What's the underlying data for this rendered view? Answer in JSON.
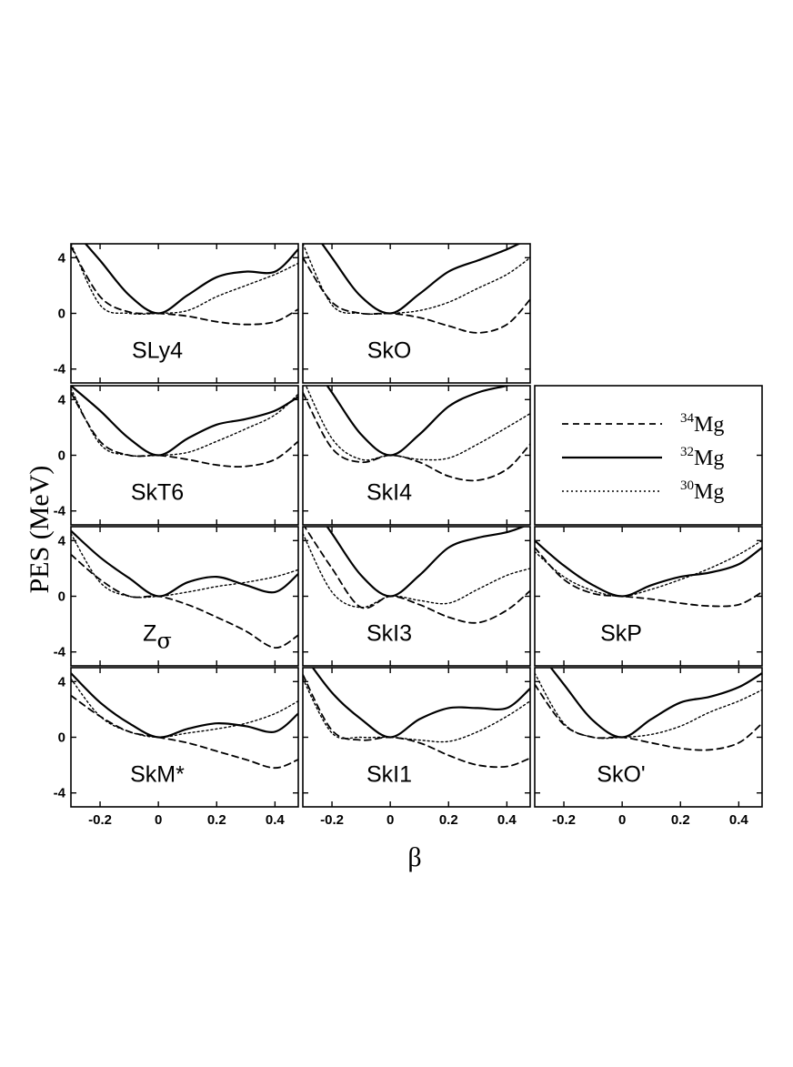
{
  "chart_data": {
    "type": "line",
    "ylabel": "PES (MeV)",
    "xlabel": "β",
    "xlim": [
      -0.3,
      0.48
    ],
    "ylim": [
      -5,
      5
    ],
    "xticks": [
      -0.2,
      0,
      0.2,
      0.4
    ],
    "xtick_labels": [
      "-0.2",
      "0",
      "0.2",
      "0.4"
    ],
    "yticks": [
      4,
      0,
      -4
    ],
    "ytick_labels": [
      "4",
      "0",
      "-4"
    ],
    "grid": false,
    "legend": {
      "location": "grid cell row 2, column 3",
      "entries": [
        {
          "series": "34Mg",
          "mass": "34",
          "element": "Mg",
          "style": "dashed"
        },
        {
          "series": "32Mg",
          "mass": "32",
          "element": "Mg",
          "style": "solid"
        },
        {
          "series": "30Mg",
          "mass": "30",
          "element": "Mg",
          "style": "dotted"
        }
      ]
    },
    "panels": [
      {
        "label": "SLy4",
        "row": 0,
        "col": 0,
        "x": [
          -0.3,
          -0.2,
          -0.1,
          0,
          0.1,
          0.2,
          0.3,
          0.4,
          0.48
        ],
        "series": [
          {
            "name": "34Mg",
            "y": [
              4.8,
              1.2,
              0.1,
              0,
              -0.2,
              -0.6,
              -0.8,
              -0.6,
              0.3
            ]
          },
          {
            "name": "32Mg",
            "y": [
              6.2,
              3.8,
              1.3,
              0,
              1.3,
              2.6,
              3.0,
              3.0,
              4.6
            ]
          },
          {
            "name": "30Mg",
            "y": [
              5.0,
              0.6,
              0,
              0,
              0.2,
              1.2,
              2.0,
              2.8,
              3.6
            ]
          }
        ]
      },
      {
        "label": "SkO",
        "row": 0,
        "col": 1,
        "x": [
          -0.3,
          -0.2,
          -0.1,
          0,
          0.1,
          0.2,
          0.3,
          0.4,
          0.48
        ],
        "series": [
          {
            "name": "34Mg",
            "y": [
              4.0,
              0.8,
              0,
              0,
              -0.3,
              -0.9,
              -1.4,
              -0.8,
              1.0
            ]
          },
          {
            "name": "32Mg",
            "y": [
              7.0,
              4.0,
              1.2,
              0,
              1.4,
              3.0,
              3.8,
              4.6,
              5.4
            ]
          },
          {
            "name": "30Mg",
            "y": [
              5.0,
              0.6,
              0,
              0,
              0.2,
              0.8,
              1.8,
              2.8,
              4.0
            ]
          }
        ]
      },
      {
        "label": "SkT6",
        "row": 1,
        "col": 0,
        "x": [
          -0.3,
          -0.2,
          -0.1,
          0,
          0.1,
          0.2,
          0.3,
          0.4,
          0.48
        ],
        "series": [
          {
            "name": "34Mg",
            "y": [
              4.5,
              1.0,
              0,
              0,
              -0.3,
              -0.7,
              -0.8,
              -0.3,
              1.0
            ]
          },
          {
            "name": "32Mg",
            "y": [
              5.0,
              3.2,
              1.2,
              0,
              1.2,
              2.2,
              2.6,
              3.2,
              4.2
            ]
          },
          {
            "name": "30Mg",
            "y": [
              4.8,
              0.8,
              0,
              0,
              0.2,
              1.0,
              1.9,
              2.9,
              4.4
            ]
          }
        ]
      },
      {
        "label": "SkI4",
        "row": 1,
        "col": 1,
        "x": [
          -0.3,
          -0.2,
          -0.1,
          0,
          0.1,
          0.2,
          0.3,
          0.4,
          0.48
        ],
        "series": [
          {
            "name": "34Mg",
            "y": [
              4.5,
              0.5,
              -0.5,
              0,
              -0.5,
              -1.5,
              -1.8,
              -1.0,
              0.8
            ]
          },
          {
            "name": "32Mg",
            "y": [
              7.5,
              4.5,
              1.5,
              0,
              1.5,
              3.5,
              4.5,
              5.0,
              5.4
            ]
          },
          {
            "name": "30Mg",
            "y": [
              5.5,
              1.2,
              -0.3,
              0,
              -0.3,
              -0.2,
              0.8,
              2.0,
              3.0
            ]
          }
        ]
      },
      {
        "label": "Zσ",
        "label_base": "Z",
        "label_sub": "σ",
        "row": 2,
        "col": 0,
        "x": [
          -0.3,
          -0.2,
          -0.1,
          0,
          0.1,
          0.2,
          0.3,
          0.4,
          0.48
        ],
        "series": [
          {
            "name": "34Mg",
            "y": [
              3.0,
              1.2,
              0,
              0,
              -0.6,
              -1.5,
              -2.5,
              -3.7,
              -2.8
            ]
          },
          {
            "name": "32Mg",
            "y": [
              4.7,
              2.8,
              1.3,
              0,
              1.0,
              1.4,
              0.8,
              0.3,
              1.6
            ]
          },
          {
            "name": "30Mg",
            "y": [
              4.5,
              1.0,
              0,
              0,
              0.3,
              0.7,
              1.0,
              1.4,
              1.9
            ]
          }
        ]
      },
      {
        "label": "SkI3",
        "row": 2,
        "col": 1,
        "x": [
          -0.3,
          -0.2,
          -0.1,
          0,
          0.1,
          0.2,
          0.3,
          0.4,
          0.48
        ],
        "series": [
          {
            "name": "34Mg",
            "y": [
              5.2,
              2.0,
              -0.8,
              0,
              -0.6,
              -1.5,
              -1.9,
              -1.0,
              0.4
            ]
          },
          {
            "name": "32Mg",
            "y": [
              7.5,
              4.5,
              1.5,
              0,
              1.5,
              3.5,
              4.2,
              4.6,
              5.2
            ]
          },
          {
            "name": "30Mg",
            "y": [
              4.5,
              0.3,
              -0.8,
              0,
              -0.3,
              -0.5,
              0.5,
              1.5,
              2.0
            ]
          }
        ]
      },
      {
        "label": "SkP",
        "row": 2,
        "col": 2,
        "x": [
          -0.3,
          -0.2,
          -0.1,
          0,
          0.1,
          0.2,
          0.3,
          0.4,
          0.48
        ],
        "series": [
          {
            "name": "34Mg",
            "y": [
              3.5,
              1.2,
              0.2,
              0,
              -0.2,
              -0.5,
              -0.7,
              -0.6,
              0.3
            ]
          },
          {
            "name": "32Mg",
            "y": [
              4.0,
              2.2,
              0.8,
              0,
              0.8,
              1.4,
              1.7,
              2.3,
              3.5
            ]
          },
          {
            "name": "30Mg",
            "y": [
              3.2,
              1.4,
              0.4,
              0,
              0.5,
              1.2,
              2.0,
              3.0,
              4.0
            ]
          }
        ]
      },
      {
        "label": "SkM*",
        "row": 3,
        "col": 0,
        "x": [
          -0.3,
          -0.2,
          -0.1,
          0,
          0.1,
          0.2,
          0.3,
          0.4,
          0.48
        ],
        "series": [
          {
            "name": "34Mg",
            "y": [
              3.0,
              1.5,
              0.4,
              0,
              -0.4,
              -1.0,
              -1.6,
              -2.2,
              -1.6
            ]
          },
          {
            "name": "32Mg",
            "y": [
              4.6,
              2.5,
              1.0,
              0,
              0.6,
              1.0,
              0.8,
              0.4,
              1.7
            ]
          },
          {
            "name": "30Mg",
            "y": [
              4.2,
              1.5,
              0.4,
              0,
              0.3,
              0.6,
              1.0,
              1.7,
              2.6
            ]
          }
        ]
      },
      {
        "label": "SkI1",
        "row": 3,
        "col": 1,
        "x": [
          -0.3,
          -0.2,
          -0.1,
          0,
          0.1,
          0.2,
          0.3,
          0.4,
          0.48
        ],
        "series": [
          {
            "name": "34Mg",
            "y": [
              4.5,
              0.5,
              -0.2,
              0,
              -0.4,
              -1.3,
              -2.0,
              -2.1,
              -1.5
            ]
          },
          {
            "name": "32Mg",
            "y": [
              6.0,
              3.2,
              1.3,
              0,
              1.3,
              2.1,
              2.1,
              2.1,
              3.5
            ]
          },
          {
            "name": "30Mg",
            "y": [
              4.2,
              0.3,
              0,
              0,
              -0.2,
              -0.3,
              0.4,
              1.5,
              2.6
            ]
          }
        ]
      },
      {
        "label": "SkO'",
        "row": 3,
        "col": 2,
        "x": [
          -0.3,
          -0.2,
          -0.1,
          0,
          0.1,
          0.2,
          0.3,
          0.4,
          0.48
        ],
        "series": [
          {
            "name": "34Mg",
            "y": [
              3.8,
              0.9,
              0,
              0,
              -0.4,
              -0.8,
              -0.9,
              -0.4,
              1.0
            ]
          },
          {
            "name": "32Mg",
            "y": [
              6.5,
              3.8,
              1.2,
              0,
              1.3,
              2.5,
              2.9,
              3.6,
              4.6
            ]
          },
          {
            "name": "30Mg",
            "y": [
              4.6,
              1.0,
              0,
              0,
              0.2,
              0.8,
              1.8,
              2.6,
              3.4
            ]
          }
        ]
      }
    ]
  }
}
